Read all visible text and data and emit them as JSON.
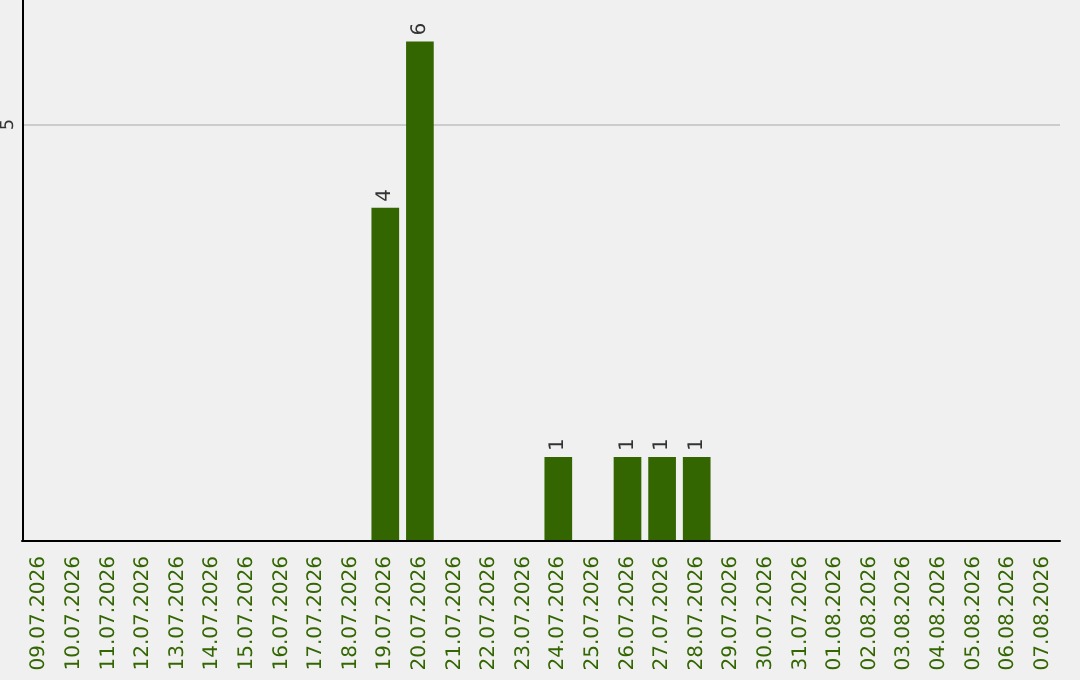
{
  "chart_data": {
    "type": "bar",
    "categories": [
      "09.07.2026",
      "10.07.2026",
      "11.07.2026",
      "12.07.2026",
      "13.07.2026",
      "14.07.2026",
      "15.07.2026",
      "16.07.2026",
      "17.07.2026",
      "18.07.2026",
      "19.07.2026",
      "20.07.2026",
      "21.07.2026",
      "22.07.2026",
      "23.07.2026",
      "24.07.2026",
      "25.07.2026",
      "26.07.2026",
      "27.07.2026",
      "28.07.2026",
      "29.07.2026",
      "30.07.2026",
      "31.07.2026",
      "01.08.2026",
      "02.08.2026",
      "03.08.2026",
      "04.08.2026",
      "05.08.2026",
      "06.08.2026",
      "07.08.2026"
    ],
    "values": [
      0,
      0,
      0,
      0,
      0,
      0,
      0,
      0,
      0,
      0,
      4,
      6,
      0,
      0,
      0,
      1,
      0,
      1,
      1,
      1,
      0,
      0,
      0,
      0,
      0,
      0,
      0,
      0,
      0,
      0
    ],
    "color": "#336600",
    "value_labels": [
      null,
      null,
      null,
      null,
      null,
      null,
      null,
      null,
      null,
      null,
      "4",
      "6",
      null,
      null,
      null,
      "1",
      null,
      "1",
      "1",
      "1",
      null,
      null,
      null,
      null,
      null,
      null,
      null,
      null,
      null,
      null
    ],
    "ylim": [
      0,
      6.5
    ],
    "yticks": [
      5
    ],
    "grid": "y"
  }
}
